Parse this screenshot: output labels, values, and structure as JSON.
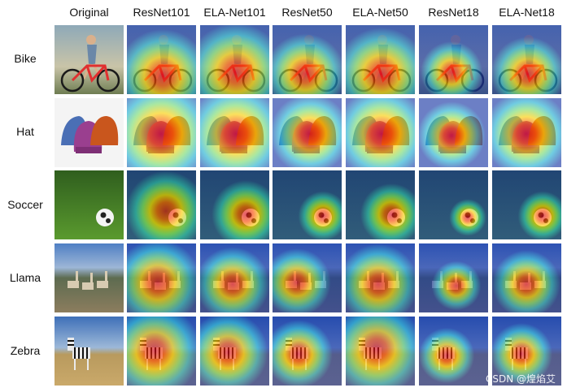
{
  "columns": [
    "Original",
    "ResNet101",
    "ELA-Net101",
    "ResNet50",
    "ELA-Net50",
    "ResNet18",
    "ELA-Net18"
  ],
  "rows": [
    {
      "label": "Bike",
      "scene": "bike"
    },
    {
      "label": "Hat",
      "scene": "hat"
    },
    {
      "label": "Soccer",
      "scene": "soccer"
    },
    {
      "label": "Llama",
      "scene": "llama"
    },
    {
      "label": "Zebra",
      "scene": "zebra"
    }
  ],
  "watermark": "CSDN @煌焰艾"
}
